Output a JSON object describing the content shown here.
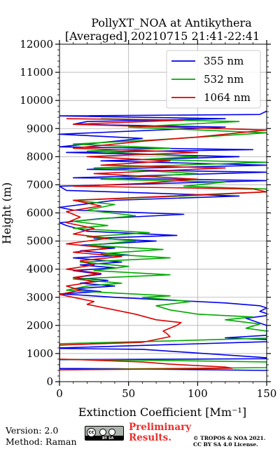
{
  "chart_data": {
    "type": "line",
    "title": "PollyXT_NOA at Antikythera",
    "subtitle": "[Averaged] 20210715 21:41-22:41",
    "xlabel": "Extinction Coefficient [Mm⁻¹]",
    "ylabel": "Height (m)",
    "xlim": [
      0,
      150
    ],
    "ylim": [
      0,
      12000
    ],
    "x_ticks": [
      0,
      50,
      100,
      150
    ],
    "y_ticks": [
      0,
      1000,
      2000,
      3000,
      4000,
      5000,
      6000,
      7000,
      8000,
      9000,
      10000,
      11000,
      12000
    ],
    "grid": true,
    "legend_position": "top-right",
    "series": [
      {
        "name": "355 nm",
        "color": "#0000ee",
        "points": [
          [
            150,
            400
          ],
          [
            95,
            430
          ],
          [
            40,
            460
          ],
          [
            0,
            470
          ],
          [
            0,
            780
          ],
          [
            40,
            790
          ],
          [
            90,
            800
          ],
          [
            150,
            815
          ],
          [
            150,
            850
          ],
          [
            60,
            1150
          ],
          [
            0,
            1180
          ],
          [
            0,
            1200
          ],
          [
            150,
            1420
          ],
          [
            150,
            1500
          ],
          [
            120,
            1560
          ],
          [
            150,
            1650
          ],
          [
            150,
            2000
          ],
          [
            135,
            2250
          ],
          [
            150,
            2350
          ],
          [
            150,
            2420
          ],
          [
            145,
            2500
          ],
          [
            150,
            2620
          ],
          [
            145,
            2700
          ],
          [
            120,
            2800
          ],
          [
            40,
            3000
          ],
          [
            15,
            3080
          ],
          [
            0,
            3120
          ],
          [
            30,
            3200
          ],
          [
            10,
            3300
          ],
          [
            40,
            3400
          ],
          [
            15,
            3500
          ],
          [
            35,
            3600
          ],
          [
            10,
            3700
          ],
          [
            30,
            3820
          ],
          [
            10,
            3950
          ],
          [
            40,
            4050
          ],
          [
            15,
            4150
          ],
          [
            45,
            4250
          ],
          [
            10,
            4400
          ],
          [
            50,
            4500
          ],
          [
            15,
            4650
          ],
          [
            40,
            4750
          ],
          [
            15,
            4850
          ],
          [
            70,
            5000
          ],
          [
            25,
            5100
          ],
          [
            85,
            5200
          ],
          [
            20,
            5350
          ],
          [
            5,
            5550
          ],
          [
            0,
            5650
          ],
          [
            30,
            5800
          ],
          [
            90,
            5950
          ],
          [
            10,
            6100
          ],
          [
            0,
            6200
          ],
          [
            40,
            6450
          ],
          [
            130,
            6600
          ],
          [
            5,
            6800
          ],
          [
            0,
            6950
          ],
          [
            150,
            7150
          ],
          [
            10,
            7250
          ],
          [
            150,
            7450
          ],
          [
            20,
            7550
          ],
          [
            150,
            7700
          ],
          [
            30,
            7850
          ],
          [
            130,
            8000
          ],
          [
            5,
            8150
          ],
          [
            140,
            8250
          ],
          [
            0,
            8350
          ],
          [
            60,
            8650
          ],
          [
            0,
            8800
          ],
          [
            120,
            9050
          ],
          [
            10,
            9150
          ],
          [
            20,
            9250
          ],
          [
            120,
            9350
          ],
          [
            0,
            9450
          ],
          [
            145,
            9500
          ],
          [
            150,
            9620
          ]
        ]
      },
      {
        "name": "532 nm",
        "color": "#00aa00",
        "points": [
          [
            0,
            420
          ],
          [
            60,
            460
          ],
          [
            150,
            500
          ],
          [
            150,
            700
          ],
          [
            80,
            750
          ],
          [
            0,
            790
          ],
          [
            0,
            1350
          ],
          [
            80,
            1450
          ],
          [
            150,
            1550
          ],
          [
            150,
            1800
          ],
          [
            135,
            1900
          ],
          [
            145,
            2050
          ],
          [
            120,
            2200
          ],
          [
            140,
            2300
          ],
          [
            100,
            2400
          ],
          [
            80,
            2550
          ],
          [
            70,
            2700
          ],
          [
            95,
            2850
          ],
          [
            60,
            3000
          ],
          [
            80,
            3050
          ],
          [
            40,
            3150
          ],
          [
            5,
            3250
          ],
          [
            20,
            3400
          ],
          [
            45,
            3500
          ],
          [
            10,
            3650
          ],
          [
            80,
            3800
          ],
          [
            25,
            3950
          ],
          [
            50,
            4100
          ],
          [
            15,
            4250
          ],
          [
            80,
            4400
          ],
          [
            30,
            4550
          ],
          [
            75,
            4700
          ],
          [
            20,
            4850
          ],
          [
            55,
            5000
          ],
          [
            20,
            5150
          ],
          [
            65,
            5300
          ],
          [
            10,
            5450
          ],
          [
            35,
            5550
          ],
          [
            10,
            5700
          ],
          [
            55,
            5900
          ],
          [
            20,
            6100
          ],
          [
            40,
            6300
          ],
          [
            10,
            6450
          ],
          [
            90,
            6600
          ],
          [
            150,
            6750
          ],
          [
            150,
            6850
          ],
          [
            90,
            6950
          ],
          [
            120,
            7100
          ],
          [
            30,
            7200
          ],
          [
            100,
            7400
          ],
          [
            25,
            7600
          ],
          [
            150,
            7800
          ],
          [
            60,
            7900
          ],
          [
            100,
            8000
          ],
          [
            20,
            8200
          ],
          [
            80,
            8300
          ],
          [
            10,
            8450
          ],
          [
            70,
            8600
          ],
          [
            150,
            8850
          ],
          [
            50,
            9050
          ],
          [
            130,
            9250
          ],
          [
            30,
            9350
          ]
        ]
      },
      {
        "name": "1064 nm",
        "color": "#dd0000",
        "points": [
          [
            0,
            420
          ],
          [
            75,
            450
          ],
          [
            125,
            480
          ],
          [
            120,
            520
          ],
          [
            80,
            620
          ],
          [
            60,
            700
          ],
          [
            15,
            780
          ],
          [
            0,
            800
          ],
          [
            0,
            1300
          ],
          [
            60,
            1400
          ],
          [
            70,
            1500
          ],
          [
            80,
            1600
          ],
          [
            78,
            1700
          ],
          [
            75,
            1800
          ],
          [
            80,
            1900
          ],
          [
            85,
            2000
          ],
          [
            88,
            2100
          ],
          [
            70,
            2200
          ],
          [
            55,
            2400
          ],
          [
            35,
            2600
          ],
          [
            20,
            2750
          ],
          [
            25,
            2850
          ],
          [
            10,
            3000
          ],
          [
            0,
            3100
          ],
          [
            15,
            3250
          ],
          [
            5,
            3400
          ],
          [
            25,
            3550
          ],
          [
            10,
            3700
          ],
          [
            30,
            3850
          ],
          [
            5,
            4000
          ],
          [
            25,
            4150
          ],
          [
            15,
            4300
          ],
          [
            45,
            4450
          ],
          [
            10,
            4600
          ],
          [
            35,
            4750
          ],
          [
            5,
            4900
          ],
          [
            35,
            5100
          ],
          [
            10,
            5250
          ],
          [
            25,
            5450
          ],
          [
            5,
            5650
          ],
          [
            15,
            5850
          ],
          [
            5,
            6050
          ],
          [
            30,
            6250
          ],
          [
            10,
            6450
          ],
          [
            150,
            6750
          ],
          [
            140,
            6850
          ],
          [
            10,
            6950
          ],
          [
            60,
            7050
          ],
          [
            100,
            7200
          ],
          [
            25,
            7400
          ],
          [
            120,
            7600
          ],
          [
            30,
            7700
          ],
          [
            80,
            7850
          ],
          [
            20,
            8000
          ],
          [
            100,
            8150
          ],
          [
            10,
            8300
          ],
          [
            60,
            8550
          ],
          [
            100,
            8700
          ],
          [
            150,
            8950
          ],
          [
            10,
            9150
          ],
          [
            90,
            9300
          ],
          [
            5,
            9350
          ]
        ]
      }
    ]
  },
  "footer": {
    "version": "Version: 2.0",
    "method": "Method: Raman",
    "license_badge": "BY  SA",
    "preliminary_line1": "Preliminary",
    "preliminary_line2": "Results.",
    "copyright_line1": "© TROPOS & NOA 2021.",
    "copyright_line2": "CC BY SA 4.0 License."
  }
}
